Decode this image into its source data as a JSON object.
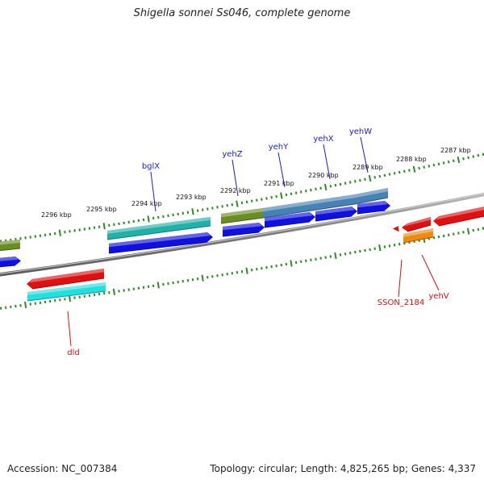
{
  "title": "Shigella sonnei Ss046, complete genome",
  "footer": {
    "accession": "Accession: NC_007384",
    "summary": "Topology: circular; Length: 4,825,265 bp; Genes: 4,337"
  },
  "colors": {
    "backbone": "#7a7a7a",
    "tick": "#2e8b22",
    "blue_label": "#1c1cc8",
    "red_label": "#d01010"
  },
  "ruler_ticks": [
    "2296 kbp",
    "2295 kbp",
    "2294 kbp",
    "2293 kbp",
    "2292 kbp",
    "2291 kbp",
    "2290 kbp",
    "2289 kbp",
    "2288 kbp",
    "2287 kbp"
  ],
  "gene_labels": [
    {
      "name": "bglX",
      "color": "blue"
    },
    {
      "name": "yehZ",
      "color": "blue"
    },
    {
      "name": "yehY",
      "color": "blue"
    },
    {
      "name": "yehX",
      "color": "blue"
    },
    {
      "name": "yehW",
      "color": "blue"
    },
    {
      "name": "dld",
      "color": "red"
    },
    {
      "name": "SSON_2184",
      "color": "red"
    },
    {
      "name": "yehV",
      "color": "red"
    }
  ]
}
